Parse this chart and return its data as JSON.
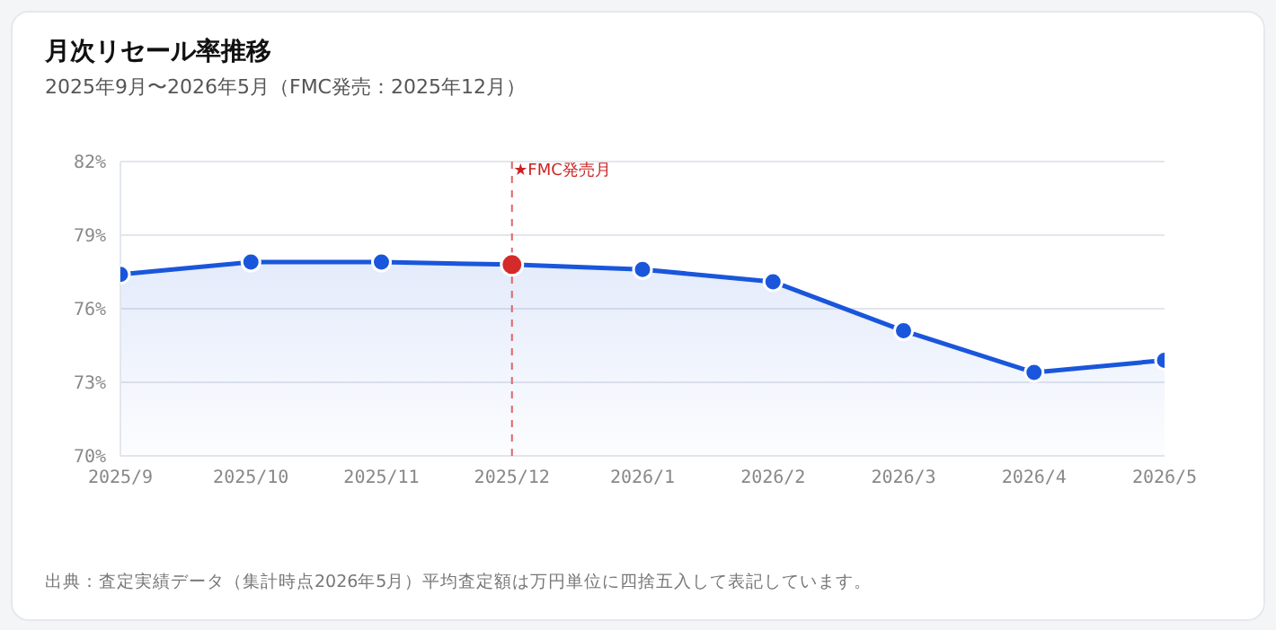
{
  "chart_data": {
    "type": "area",
    "title": "月次リセール率推移",
    "subtitle": "2025年9月〜2026年5月（FMC発売：2025年12月）",
    "categories": [
      "2025/9",
      "2025/10",
      "2025/11",
      "2025/12",
      "2026/1",
      "2026/2",
      "2026/3",
      "2026/4",
      "2026/5"
    ],
    "series": [
      {
        "color": "#1a56db",
        "colors": [
          "#1a56db",
          "#1a56db",
          "#1a56db",
          "#d42a2a",
          "#1a56db",
          "#1a56db",
          "#1a56db",
          "#1a56db",
          "#1a56db"
        ],
        "values": [
          77.4,
          77.9,
          77.9,
          77.8,
          77.6,
          77.1,
          75.1,
          73.4,
          73.9
        ]
      }
    ],
    "ylim": [
      70,
      82
    ],
    "yticks": [
      {
        "value": 70,
        "label": "70%"
      },
      {
        "value": 73,
        "label": "73%"
      },
      {
        "value": 76,
        "label": "76%"
      },
      {
        "value": 79,
        "label": "79%"
      },
      {
        "value": 82,
        "label": "82%"
      }
    ],
    "grid": "y",
    "marker": "circle",
    "legend": false,
    "ref_lines": [
      {
        "axis": "x",
        "value": "2025/12",
        "label": "★FMC発売月",
        "color": "#e06666",
        "line_style": "dashed"
      }
    ],
    "annotations": [
      "出典：査定実績データ（集計時点2026年5月）平均査定額は万円単位に四捨五入して表記しています。"
    ]
  }
}
